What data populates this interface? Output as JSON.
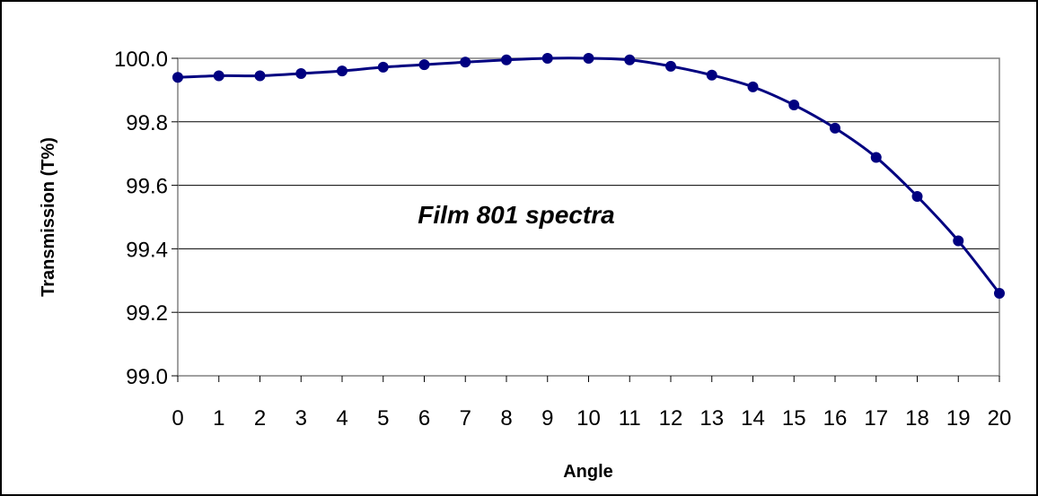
{
  "chart_data": {
    "type": "line",
    "title": "",
    "annotation": "Film 801 spectra",
    "xlabel": "Angle",
    "ylabel": "Transmission (T%)",
    "x": [
      0,
      1,
      2,
      3,
      4,
      5,
      6,
      7,
      8,
      9,
      10,
      11,
      12,
      13,
      14,
      15,
      16,
      17,
      18,
      19,
      20
    ],
    "x_tick_labels": [
      "0",
      "1",
      "2",
      "3",
      "4",
      "5",
      "6",
      "7",
      "8",
      "9",
      "10",
      "11",
      "12",
      "13",
      "14",
      "15",
      "16",
      "17",
      "18",
      "19",
      "20"
    ],
    "series": [
      {
        "values": [
          99.94,
          99.945,
          99.945,
          99.952,
          99.96,
          99.972,
          99.98,
          99.988,
          99.995,
          100.0,
          100.0,
          99.995,
          99.975,
          99.947,
          99.91,
          99.853,
          99.78,
          99.688,
          99.565,
          99.425,
          99.26
        ],
        "color": "#000080",
        "marker": "circle"
      }
    ],
    "ylim": [
      99.0,
      100.0
    ],
    "y_ticks": [
      99.0,
      99.2,
      99.4,
      99.6,
      99.8,
      100.0
    ],
    "y_tick_labels": [
      "99.0",
      "99.2",
      "99.4",
      "99.6",
      "99.8",
      "100.0"
    ],
    "grid": "horizontal",
    "legend": "none",
    "colors": {
      "line": "#000080",
      "grid": "#000000",
      "plot_border": "#808080",
      "frame": "#000000"
    }
  }
}
